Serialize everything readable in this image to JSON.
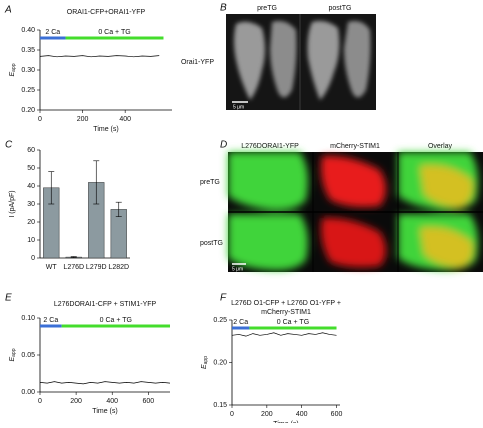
{
  "chart_data": [
    {
      "type": "line",
      "label": "A",
      "title": [
        "ORAI1-CFP+ORAI1-YFP"
      ],
      "ylabel": "E",
      "ylabel_sub": "app",
      "xlabel": "Time (s)",
      "x": [
        0,
        40,
        80,
        120,
        160,
        200,
        240,
        280,
        320,
        360,
        400,
        440,
        480,
        520,
        560
      ],
      "values": [
        0.334,
        0.336,
        0.333,
        0.335,
        0.334,
        0.336,
        0.333,
        0.335,
        0.334,
        0.336,
        0.335,
        0.333,
        0.335,
        0.334,
        0.336
      ],
      "color": "#000000",
      "xlim": [
        0,
        620
      ],
      "ylim": [
        0.2,
        0.4
      ],
      "xticks": [
        0,
        200,
        400
      ],
      "yticks": [
        {
          "value": 0.2,
          "label": "0.20"
        },
        {
          "value": 0.25,
          "label": "0.25"
        },
        {
          "value": 0.3,
          "label": "0.30"
        },
        {
          "value": 0.35,
          "label": "0.35"
        },
        {
          "value": 0.4,
          "label": "0.40"
        }
      ],
      "annotations": [
        {
          "label": "2 Ca",
          "start": 0,
          "end": 120,
          "color": "#3b6fd6"
        },
        {
          "label": "0 Ca + TG",
          "start": 120,
          "end": 580,
          "color": "#44dd2c"
        }
      ]
    },
    {
      "type": "bar",
      "label": "C",
      "ylabel": "I (pA/pF)",
      "categories": [
        "WT",
        "L276D",
        "L279D",
        "L282D"
      ],
      "values": [
        39,
        0.5,
        42,
        27
      ],
      "errors": [
        9,
        0.3,
        12,
        4
      ],
      "color": "#8c9aa0",
      "ylim": [
        0,
        60
      ],
      "yticks": [
        0,
        10,
        20,
        30,
        40,
        50,
        60
      ]
    },
    {
      "type": "line",
      "label": "E",
      "title": [
        "L276DORAI1-CFP + STIM1-YFP"
      ],
      "ylabel": "E",
      "ylabel_sub": "app",
      "xlabel": "Time (s)",
      "x": [
        0,
        40,
        80,
        120,
        160,
        200,
        240,
        280,
        320,
        360,
        400,
        440,
        480,
        520,
        560,
        600,
        640,
        680,
        720
      ],
      "values": [
        0.013,
        0.012,
        0.014,
        0.012,
        0.013,
        0.012,
        0.011,
        0.013,
        0.012,
        0.014,
        0.013,
        0.012,
        0.013,
        0.012,
        0.014,
        0.013,
        0.012,
        0.013,
        0.012
      ],
      "color": "#000000",
      "xlim": [
        0,
        720
      ],
      "ylim": [
        0,
        0.1
      ],
      "xticks": [
        0,
        200,
        400,
        600
      ],
      "yticks": [
        {
          "value": 0,
          "label": "0.00"
        },
        {
          "value": 0.05,
          "label": "0.05"
        },
        {
          "value": 0.1,
          "label": "0.10"
        }
      ],
      "annotations": [
        {
          "label": "2 Ca",
          "start": 0,
          "end": 120,
          "color": "#3b6fd6"
        },
        {
          "label": "0 Ca + TG",
          "start": 120,
          "end": 720,
          "color": "#44dd2c"
        }
      ]
    },
    {
      "type": "line",
      "label": "F",
      "title": [
        "L276D O1-CFP + L276D O1-YFP +",
        "mCherry-STIM1"
      ],
      "ylabel": "E",
      "ylabel_sub": "app",
      "xlabel": "Time (s)",
      "x": [
        0,
        40,
        80,
        120,
        160,
        200,
        240,
        280,
        320,
        360,
        400,
        440,
        480,
        520,
        560,
        600
      ],
      "values": [
        0.232,
        0.233,
        0.231,
        0.234,
        0.232,
        0.233,
        0.235,
        0.232,
        0.234,
        0.233,
        0.232,
        0.234,
        0.233,
        0.235,
        0.233,
        0.232
      ],
      "color": "#000000",
      "xlim": [
        0,
        620
      ],
      "ylim": [
        0.15,
        0.25
      ],
      "xticks": [
        0,
        200,
        400,
        600
      ],
      "yticks": [
        {
          "value": 0.15,
          "label": "0.15"
        },
        {
          "value": 0.2,
          "label": "0.20"
        },
        {
          "value": 0.25,
          "label": "0.25"
        }
      ],
      "annotations": [
        {
          "label": "2 Ca",
          "start": 0,
          "end": 100,
          "color": "#3b6fd6"
        },
        {
          "label": "0 Ca + TG",
          "start": 100,
          "end": 600,
          "color": "#44dd2c"
        }
      ]
    }
  ],
  "image_panels": [
    {
      "label": "B",
      "columns": [
        "preTG",
        "postTG"
      ],
      "rows": [
        "Orai1-YFP"
      ],
      "scale_bar": "5 μm"
    },
    {
      "label": "D",
      "columns": [
        "L276DORAI1-YFP",
        "mCherry-STIM1",
        "Overlay"
      ],
      "rows": [
        "preTG",
        "postTG"
      ],
      "scale_bar": "5 μm"
    }
  ]
}
